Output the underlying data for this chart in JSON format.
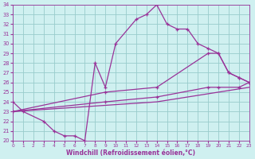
{
  "bg_color": "#cff0f0",
  "line_color": "#993399",
  "grid_color": "#99cccc",
  "xlabel": "Windchill (Refroidissement éolien,°C)",
  "xlabel_color": "#993399",
  "ylim": [
    20,
    34
  ],
  "xlim": [
    0,
    23
  ],
  "yticks": [
    20,
    21,
    22,
    23,
    24,
    25,
    26,
    27,
    28,
    29,
    30,
    31,
    32,
    33,
    34
  ],
  "xticks": [
    0,
    1,
    2,
    3,
    4,
    5,
    6,
    7,
    8,
    9,
    10,
    11,
    12,
    13,
    14,
    15,
    16,
    17,
    18,
    19,
    20,
    21,
    22,
    23
  ],
  "line1_x": [
    0,
    1,
    3,
    4,
    5,
    6,
    7,
    8,
    9,
    10,
    12,
    13,
    14,
    15,
    16,
    17,
    18,
    19,
    20,
    21,
    22,
    23
  ],
  "line1_y": [
    24,
    23,
    22,
    21,
    20.5,
    20.5,
    20,
    28,
    25.5,
    30,
    32.5,
    33,
    34,
    32,
    31.5,
    31.5,
    30,
    29.5,
    29,
    27,
    26.5,
    26
  ],
  "line2_x": [
    0,
    9,
    14,
    19,
    20,
    21,
    22,
    23
  ],
  "line2_y": [
    23,
    25,
    25.5,
    29,
    29,
    27,
    26.5,
    26
  ],
  "line3_x": [
    0,
    9,
    14,
    19,
    20,
    22,
    23
  ],
  "line3_y": [
    23,
    24,
    24.5,
    25.5,
    25.5,
    25.5,
    26
  ],
  "line4_x": [
    0,
    14,
    23
  ],
  "line4_y": [
    23,
    24,
    25.5
  ],
  "marker_size": 3,
  "line_width": 0.9
}
